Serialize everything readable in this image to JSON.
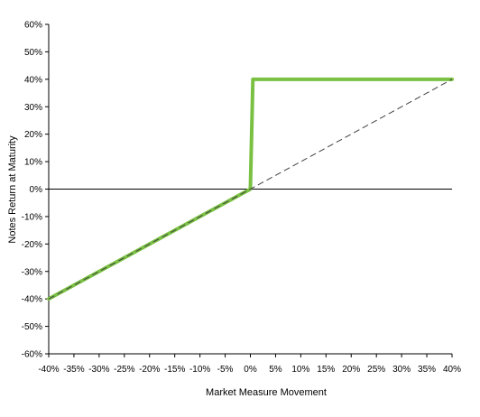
{
  "chart_data": {
    "type": "line",
    "title": "",
    "xlabel": "Market Measure Movement",
    "ylabel": "Notes Return at Maturity",
    "xlim": [
      -40,
      40
    ],
    "ylim": [
      -60,
      60
    ],
    "x_ticks": [
      "-40%",
      "-35%",
      "-30%",
      "-25%",
      "-20%",
      "-15%",
      "-10%",
      "-5%",
      "0%",
      "5%",
      "10%",
      "15%",
      "20%",
      "25%",
      "30%",
      "35%",
      "40%"
    ],
    "y_ticks": [
      "60%",
      "50%",
      "40%",
      "30%",
      "20%",
      "10%",
      "0%",
      "-10%",
      "-20%",
      "-30%",
      "-40%",
      "-50%",
      "-60%"
    ],
    "grid": false,
    "legend": "none",
    "series": [
      {
        "style": "solid",
        "color": "#7ac143",
        "x": [
          -40,
          0,
          0.5,
          40
        ],
        "y": [
          -40,
          0,
          40,
          40
        ]
      },
      {
        "style": "dashed",
        "color": "#404040",
        "x": [
          -40,
          40
        ],
        "y": [
          -40,
          40
        ]
      }
    ]
  }
}
